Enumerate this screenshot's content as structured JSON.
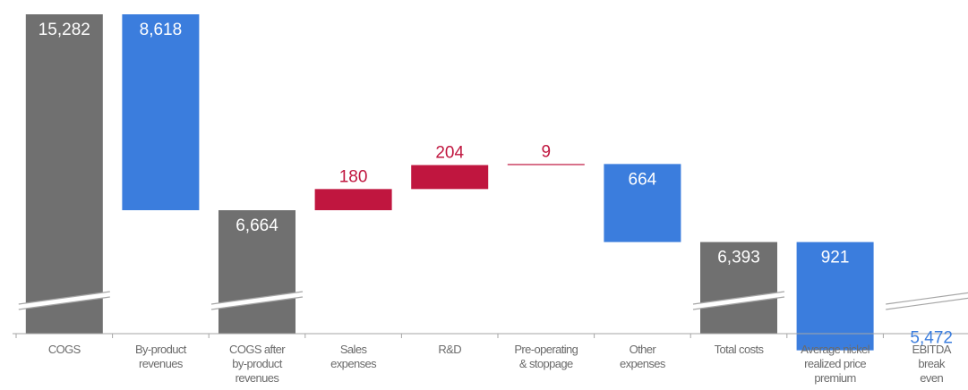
{
  "chart_data": {
    "type": "waterfall",
    "title": "",
    "xlabel": "",
    "ylabel": "",
    "axis_break": true,
    "grid": false,
    "legend": "none",
    "colors": {
      "total": "#707070",
      "reduction": "#3b7ddd",
      "increase": "#c0163f",
      "label_on_bar": "#ffffff",
      "axis": "#a6a6a6",
      "category_text": "#6b6b6b"
    },
    "categories": [
      [
        "COGS"
      ],
      [
        "By-product",
        "revenues"
      ],
      [
        "COGS after",
        "by-product",
        "revenues"
      ],
      [
        "Sales",
        "expenses"
      ],
      [
        "R&D"
      ],
      [
        "Pre-operating",
        "& stoppage"
      ],
      [
        "Other",
        "expenses"
      ],
      [
        "Total costs"
      ],
      [
        "Average nickel",
        "realized price",
        "premium"
      ],
      [
        "EBITDA",
        "break",
        "even"
      ]
    ],
    "points": [
      {
        "label": "15,282",
        "value": 15282,
        "kind": "total"
      },
      {
        "label": "8,618",
        "value": -8618,
        "kind": "reduction"
      },
      {
        "label": "6,664",
        "value": 6664,
        "kind": "total"
      },
      {
        "label": "180",
        "value": 180,
        "kind": "increase"
      },
      {
        "label": "204",
        "value": 204,
        "kind": "increase"
      },
      {
        "label": "9",
        "value": 9,
        "kind": "increase"
      },
      {
        "label": "664",
        "value": -664,
        "kind": "reduction"
      },
      {
        "label": "6,393",
        "value": 6393,
        "kind": "total"
      },
      {
        "label": "921",
        "value": -921,
        "kind": "reduction"
      },
      {
        "label": "5,472",
        "value": 5472,
        "kind": "total"
      }
    ]
  }
}
